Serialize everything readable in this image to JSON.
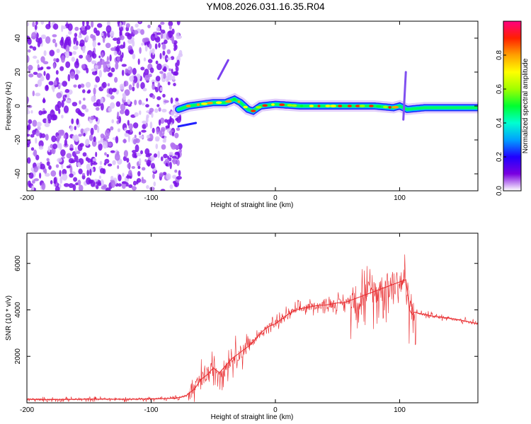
{
  "title": "YM08.2026.031.16.35.R04",
  "colors": {
    "snr_line": "#e8282b",
    "colorbar": [
      "#ffffff",
      "#7a00e0",
      "#2000ff",
      "#00a0ff",
      "#00ffd0",
      "#00ff30",
      "#a0ff00",
      "#ffff00",
      "#ffa000",
      "#ff2000",
      "#ff0080"
    ]
  },
  "chart_data": [
    {
      "type": "heatmap",
      "title": "",
      "xlabel": "Height of straight line (km)",
      "ylabel": "Frequency (Hz)",
      "xlim": [
        -200,
        163
      ],
      "ylim": [
        -50,
        50
      ],
      "x_ticks": [
        -200,
        -100,
        0,
        100
      ],
      "y_ticks": [
        -40,
        -20,
        0,
        20,
        40
      ],
      "colorbar": {
        "label": "Normalized spectral amplitude",
        "range": [
          0,
          1
        ],
        "ticks": [
          "0.0",
          "0.2",
          "0.4",
          "0.6",
          "0.8"
        ]
      },
      "ridge": {
        "x": [
          -78,
          -70,
          -60,
          -50,
          -40,
          -33,
          -28,
          -22,
          -18,
          -12,
          0,
          20,
          40,
          60,
          80,
          95,
          100,
          106,
          120,
          140,
          163
        ],
        "y": [
          -2,
          0,
          1,
          2,
          2,
          4,
          2,
          -2,
          -3,
          0,
          1,
          0,
          0,
          0,
          0,
          -1,
          0,
          -2,
          -1,
          -1,
          -1
        ]
      }
    },
    {
      "type": "line",
      "title": "",
      "xlabel": "Height of straight line (km)",
      "ylabel": "SNR (10 * v/v)",
      "xlim": [
        -200,
        163
      ],
      "ylim": [
        0,
        7300
      ],
      "x_ticks": [
        -200,
        -100,
        0,
        100
      ],
      "y_ticks": [
        2000,
        4000,
        6000
      ],
      "series": [
        {
          "name": "SNR",
          "x": [
            -200,
            -180,
            -160,
            -140,
            -120,
            -100,
            -90,
            -80,
            -72,
            -65,
            -60,
            -55,
            -50,
            -45,
            -40,
            -35,
            -30,
            -25,
            -20,
            -15,
            -10,
            -5,
            0,
            5,
            10,
            15,
            20,
            25,
            30,
            35,
            40,
            45,
            50,
            55,
            60,
            65,
            70,
            75,
            80,
            85,
            90,
            95,
            100,
            105,
            108,
            110,
            112,
            115,
            120,
            130,
            140,
            150,
            163
          ],
          "y": [
            150,
            140,
            150,
            160,
            150,
            170,
            180,
            200,
            300,
            600,
            1000,
            1200,
            1500,
            1300,
            1600,
            1900,
            2100,
            2300,
            2500,
            2800,
            3100,
            3300,
            3400,
            3600,
            3800,
            3950,
            4050,
            4100,
            4150,
            4200,
            4200,
            4250,
            4300,
            4300,
            4400,
            4500,
            4600,
            4700,
            4800,
            4900,
            5000,
            5100,
            5200,
            5300,
            4000,
            3800,
            3900,
            3850,
            3800,
            3700,
            3650,
            3550,
            3400
          ]
        }
      ]
    }
  ]
}
